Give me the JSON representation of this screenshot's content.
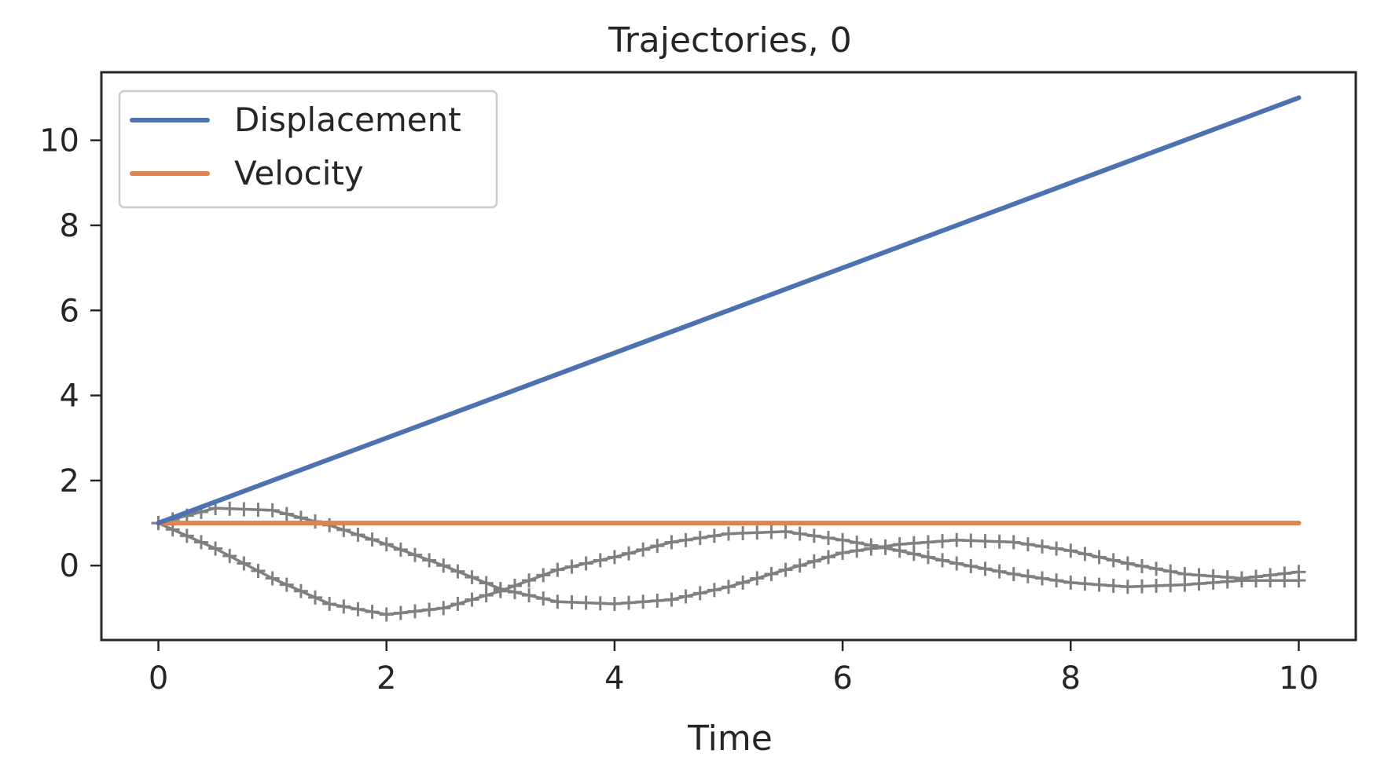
{
  "chart_data": {
    "type": "line",
    "title": "Trajectories, 0",
    "xlabel": "Time",
    "ylabel": "",
    "xlim": [
      -0.5,
      10.5
    ],
    "ylim": [
      -1.75,
      11.6
    ],
    "xticks": [
      0,
      2,
      4,
      6,
      8,
      10
    ],
    "yticks": [
      0,
      2,
      4,
      6,
      8,
      10
    ],
    "grid": false,
    "legend_position": "top-left",
    "series": [
      {
        "name": "Displacement",
        "color": "#4c72b0",
        "x": [
          0,
          10
        ],
        "y": [
          1,
          11
        ]
      },
      {
        "name": "Velocity",
        "color": "#dd8452",
        "x": [
          0,
          10
        ],
        "y": [
          1,
          1
        ]
      }
    ],
    "sample_trajectories": {
      "color": "#808080",
      "marker": "plus",
      "x": [
        0,
        0.5,
        1,
        1.5,
        2,
        2.5,
        3,
        3.5,
        4,
        4.5,
        5,
        5.5,
        6,
        6.5,
        7,
        7.5,
        8,
        8.5,
        9,
        9.5,
        10
      ],
      "lines": [
        [
          1,
          0.4,
          -0.3,
          -0.9,
          -1.15,
          -1.0,
          -0.6,
          -0.1,
          0.2,
          0.55,
          0.75,
          0.8,
          0.6,
          0.35,
          0.05,
          -0.2,
          -0.4,
          -0.5,
          -0.45,
          -0.35,
          -0.35
        ],
        [
          1,
          1.35,
          1.3,
          0.95,
          0.5,
          0.0,
          -0.55,
          -0.85,
          -0.9,
          -0.8,
          -0.5,
          -0.1,
          0.3,
          0.5,
          0.6,
          0.55,
          0.35,
          0.05,
          -0.2,
          -0.3,
          -0.15
        ]
      ]
    }
  }
}
